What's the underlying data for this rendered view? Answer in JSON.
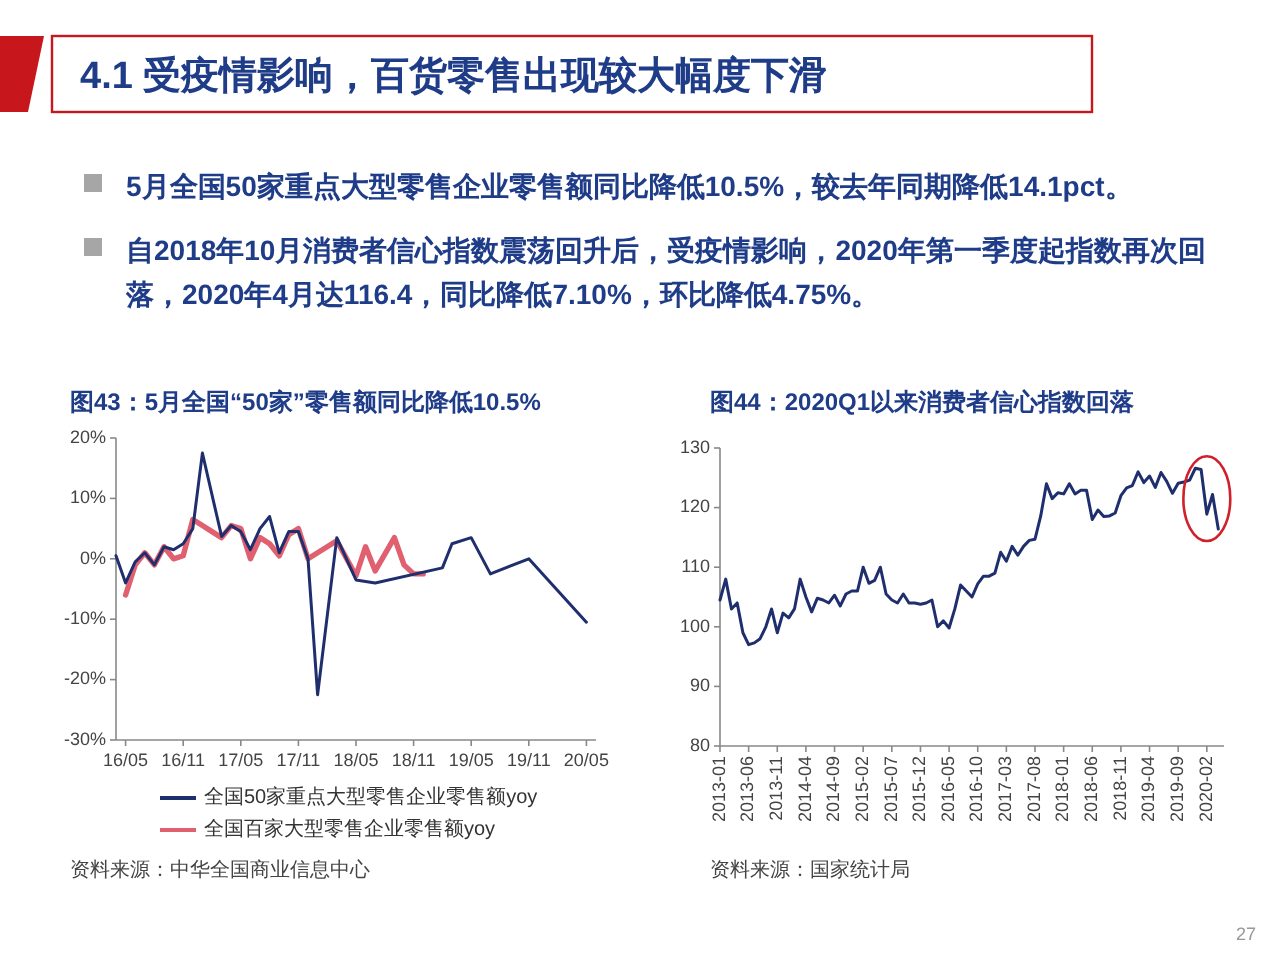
{
  "chart_data": [
    {
      "type": "other",
      "title": "4.1 受疫情影响，百货零售出现较大幅度下滑",
      "annotations": [
        "5月全国50家重点大型零售企业零售额同比降低10.5%，较去年同期降低14.1pct。",
        "自2018年10月消费者信心指数震荡回升后，受疫情影响，2020年第一季度起指数再次回落，2020年4月达116.4，同比降低7.10%，环比降低4.75%。",
        "27"
      ]
    },
    {
      "type": "line",
      "title": "图43：5月全国“50家”零售额同比降低10.5%",
      "xlim": [
        "2016-04",
        "2020-06"
      ],
      "xticks": [
        {
          "value": "2016-05",
          "label": "16/05"
        },
        {
          "value": "2016-11",
          "label": "16/11"
        },
        {
          "value": "2017-05",
          "label": "17/05"
        },
        {
          "value": "2017-11",
          "label": "17/11"
        },
        {
          "value": "2018-05",
          "label": "18/05"
        },
        {
          "value": "2018-11",
          "label": "18/11"
        },
        {
          "value": "2019-05",
          "label": "19/05"
        },
        {
          "value": "2019-11",
          "label": "19/11"
        },
        {
          "value": "2020-05",
          "label": "20/05"
        }
      ],
      "ylim": [
        -30,
        20
      ],
      "yticks": [
        {
          "value": -30,
          "label": "-30%"
        },
        {
          "value": -20,
          "label": "-20%"
        },
        {
          "value": -10,
          "label": "-10%"
        },
        {
          "value": 0,
          "label": "0%"
        },
        {
          "value": 10,
          "label": "10%"
        },
        {
          "value": 20,
          "label": "20%"
        }
      ],
      "legend": "bottom",
      "annotations": [
        "资料来源：中华全国商业信息中心"
      ],
      "series": [
        {
          "name": "全国50家重点大型零售企业零售额yoy",
          "color": "#1f2f6e",
          "x": [
            "2016-04",
            "2016-05",
            "2016-06",
            "2016-07",
            "2016-08",
            "2016-09",
            "2016-10",
            "2016-11",
            "2016-12",
            "2017-01",
            "2017-03",
            "2017-04",
            "2017-05",
            "2017-06",
            "2017-07",
            "2017-08",
            "2017-09",
            "2017-10",
            "2017-11",
            "2017-12",
            "2018-01",
            "2018-03",
            "2018-05",
            "2018-07",
            "2019-02",
            "2019-03",
            "2019-05",
            "2019-07",
            "2019-11",
            "2020-05"
          ],
          "values": [
            0.5,
            -4,
            -0.5,
            1,
            -1,
            2,
            1.5,
            2.5,
            5,
            17.5,
            3.7,
            5.5,
            4.5,
            1.5,
            5,
            7,
            1,
            4.5,
            4.5,
            0,
            -22.5,
            3.5,
            -3.5,
            -4,
            -1.5,
            2.5,
            3.5,
            -2.5,
            0,
            -10.5
          ]
        },
        {
          "name": "全国百家大型零售企业零售额yoy",
          "color": "#e06070",
          "x": [
            "2016-05",
            "2016-06",
            "2016-07",
            "2016-08",
            "2016-09",
            "2016-10",
            "2016-11",
            "2016-12",
            "2017-01",
            "2017-02",
            "2017-03",
            "2017-04",
            "2017-05",
            "2017-06",
            "2017-07",
            "2017-08",
            "2017-09",
            "2017-10",
            "2017-11",
            "2017-12",
            "2018-03",
            "2018-05",
            "2018-06",
            "2018-07",
            "2018-09",
            "2018-10",
            "2018-11",
            "2018-12"
          ],
          "values": [
            -6,
            -1,
            1,
            -1,
            2,
            0,
            0.5,
            6.5,
            5.5,
            4.5,
            3.5,
            5.5,
            5,
            0,
            3.5,
            2.5,
            0.5,
            4,
            5,
            0,
            3,
            -2.8,
            2,
            -2,
            3.5,
            -1,
            -2.5,
            -2.5
          ]
        }
      ]
    },
    {
      "type": "line",
      "title": "图44：2020Q1以来消费者信心指数回落",
      "xlim": [
        "2013-01",
        "2020-05"
      ],
      "xticks": [
        "2013-01",
        "2013-06",
        "2013-11",
        "2014-04",
        "2014-09",
        "2015-02",
        "2015-07",
        "2015-12",
        "2016-05",
        "2016-10",
        "2017-03",
        "2017-08",
        "2018-01",
        "2018-06",
        "2018-11",
        "2019-04",
        "2019-09",
        "2020-02"
      ],
      "ylim": [
        80,
        130
      ],
      "yticks": [
        80,
        90,
        100,
        110,
        120,
        130
      ],
      "annotations": [
        "资料来源：国家统计局"
      ],
      "series": [
        {
          "color": "#1f2f6e",
          "x": [
            "2013-01",
            "2013-02",
            "2013-03",
            "2013-04",
            "2013-05",
            "2013-06",
            "2013-07",
            "2013-08",
            "2013-09",
            "2013-10",
            "2013-11",
            "2013-12",
            "2014-01",
            "2014-02",
            "2014-03",
            "2014-04",
            "2014-05",
            "2014-06",
            "2014-07",
            "2014-08",
            "2014-09",
            "2014-10",
            "2014-11",
            "2014-12",
            "2015-01",
            "2015-02",
            "2015-03",
            "2015-04",
            "2015-05",
            "2015-06",
            "2015-07",
            "2015-08",
            "2015-09",
            "2015-10",
            "2015-11",
            "2015-12",
            "2016-01",
            "2016-02",
            "2016-03",
            "2016-04",
            "2016-05",
            "2016-06",
            "2016-07",
            "2016-08",
            "2016-09",
            "2016-10",
            "2016-11",
            "2016-12",
            "2017-01",
            "2017-02",
            "2017-03",
            "2017-04",
            "2017-05",
            "2017-06",
            "2017-07",
            "2017-08",
            "2017-09",
            "2017-10",
            "2017-11",
            "2017-12",
            "2018-01",
            "2018-02",
            "2018-03",
            "2018-04",
            "2018-05",
            "2018-06",
            "2018-07",
            "2018-08",
            "2018-09",
            "2018-10",
            "2018-11",
            "2018-12",
            "2019-01",
            "2019-02",
            "2019-03",
            "2019-04",
            "2019-05",
            "2019-06",
            "2019-07",
            "2019-08",
            "2019-09",
            "2019-10",
            "2019-11",
            "2019-12",
            "2020-01",
            "2020-02",
            "2020-03",
            "2020-04"
          ],
          "values": [
            104.5,
            108,
            103,
            104,
            99,
            97,
            97.3,
            98,
            100,
            103,
            99,
            102.3,
            101.5,
            103,
            108,
            105,
            102.5,
            104.8,
            104.5,
            104,
            105.3,
            103.5,
            105.5,
            106,
            106,
            110,
            107.3,
            107.8,
            110,
            105.5,
            104.5,
            104,
            105.5,
            104,
            104,
            103.8,
            104,
            104.5,
            100,
            101,
            99.8,
            103,
            107,
            106,
            105,
            107.2,
            108.5,
            108.5,
            109,
            112.5,
            111,
            113.5,
            112,
            113.5,
            114.5,
            114.7,
            118.6,
            124,
            121.5,
            122.5,
            122.3,
            124,
            122.3,
            122.9,
            122.9,
            118,
            119.6,
            118.5,
            118.6,
            119.1,
            122,
            123.3,
            123.7,
            126,
            124.2,
            125.3,
            123.4,
            125.9,
            124.4,
            122.4,
            124.1,
            124.3,
            124.6,
            126.6,
            126.4,
            118.9,
            122.2,
            116.4
          ]
        }
      ]
    }
  ]
}
